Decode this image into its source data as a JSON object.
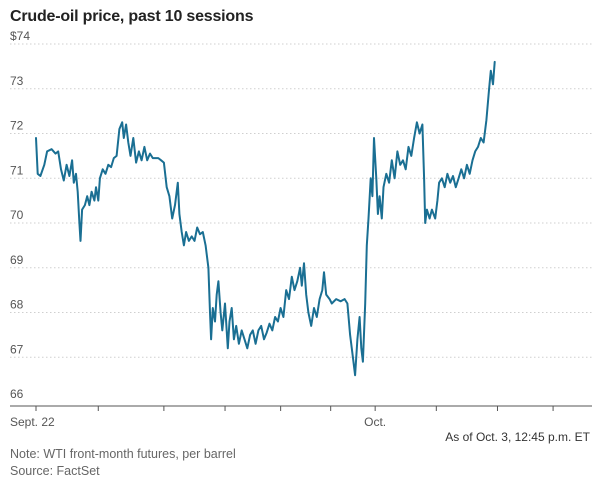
{
  "chart_data": {
    "type": "line",
    "title": "Crude-oil price, past 10 sessions",
    "xlabel": "",
    "ylabel": "",
    "ylim": [
      66,
      74
    ],
    "y_ticks": [
      {
        "value": 74,
        "label": "$74"
      },
      {
        "value": 73,
        "label": "73"
      },
      {
        "value": 72,
        "label": "72"
      },
      {
        "value": 71,
        "label": "71"
      },
      {
        "value": 70,
        "label": "70"
      },
      {
        "value": 69,
        "label": "69"
      },
      {
        "value": 68,
        "label": "68"
      },
      {
        "value": 67,
        "label": "67"
      },
      {
        "value": 66,
        "label": "66"
      }
    ],
    "x_range": [
      0,
      10
    ],
    "x_ticks": [
      0,
      1.12,
      2.3,
      3.4,
      4.4,
      5.3,
      6.1,
      7.2,
      8.3,
      9.3
    ],
    "x_tick_labels": [
      {
        "x": 0,
        "label": "Sept. 22"
      },
      {
        "x": 6.1,
        "label": "Oct."
      }
    ],
    "series": [
      {
        "name": "WTI front-month futures",
        "color": "#1a6f93",
        "points": [
          [
            0.0,
            71.9
          ],
          [
            0.03,
            71.1
          ],
          [
            0.08,
            71.05
          ],
          [
            0.15,
            71.3
          ],
          [
            0.2,
            71.6
          ],
          [
            0.28,
            71.65
          ],
          [
            0.35,
            71.55
          ],
          [
            0.4,
            71.6
          ],
          [
            0.45,
            71.2
          ],
          [
            0.5,
            70.95
          ],
          [
            0.55,
            71.3
          ],
          [
            0.6,
            71.05
          ],
          [
            0.65,
            71.4
          ],
          [
            0.68,
            70.9
          ],
          [
            0.72,
            71.1
          ],
          [
            0.75,
            70.7
          ],
          [
            0.78,
            70.0
          ],
          [
            0.8,
            69.6
          ],
          [
            0.83,
            70.3
          ],
          [
            0.88,
            70.4
          ],
          [
            0.92,
            70.6
          ],
          [
            0.96,
            70.4
          ],
          [
            1.0,
            70.7
          ],
          [
            1.05,
            70.5
          ],
          [
            1.08,
            70.8
          ],
          [
            1.12,
            70.5
          ],
          [
            1.15,
            71.0
          ],
          [
            1.2,
            71.2
          ],
          [
            1.25,
            71.1
          ],
          [
            1.3,
            71.3
          ],
          [
            1.35,
            71.25
          ],
          [
            1.4,
            71.45
          ],
          [
            1.45,
            71.5
          ],
          [
            1.5,
            72.1
          ],
          [
            1.55,
            72.25
          ],
          [
            1.58,
            71.9
          ],
          [
            1.62,
            72.2
          ],
          [
            1.66,
            71.8
          ],
          [
            1.7,
            71.5
          ],
          [
            1.75,
            71.9
          ],
          [
            1.8,
            71.35
          ],
          [
            1.85,
            71.6
          ],
          [
            1.9,
            71.4
          ],
          [
            1.95,
            71.7
          ],
          [
            2.0,
            71.4
          ],
          [
            2.05,
            71.55
          ],
          [
            2.1,
            71.45
          ],
          [
            2.2,
            71.45
          ],
          [
            2.25,
            71.4
          ],
          [
            2.3,
            71.35
          ],
          [
            2.35,
            70.8
          ],
          [
            2.4,
            70.6
          ],
          [
            2.45,
            70.1
          ],
          [
            2.5,
            70.4
          ],
          [
            2.55,
            70.9
          ],
          [
            2.58,
            70.2
          ],
          [
            2.62,
            69.8
          ],
          [
            2.66,
            69.5
          ],
          [
            2.7,
            69.8
          ],
          [
            2.75,
            69.6
          ],
          [
            2.8,
            69.7
          ],
          [
            2.85,
            69.6
          ],
          [
            2.9,
            69.9
          ],
          [
            2.95,
            69.75
          ],
          [
            3.0,
            69.8
          ],
          [
            3.05,
            69.5
          ],
          [
            3.1,
            69.0
          ],
          [
            3.13,
            68.0
          ],
          [
            3.15,
            67.4
          ],
          [
            3.18,
            68.1
          ],
          [
            3.22,
            67.8
          ],
          [
            3.25,
            68.4
          ],
          [
            3.28,
            68.7
          ],
          [
            3.32,
            68.0
          ],
          [
            3.35,
            67.6
          ],
          [
            3.4,
            68.2
          ],
          [
            3.45,
            67.2
          ],
          [
            3.48,
            67.8
          ],
          [
            3.52,
            68.1
          ],
          [
            3.56,
            67.4
          ],
          [
            3.6,
            67.7
          ],
          [
            3.65,
            67.3
          ],
          [
            3.7,
            67.6
          ],
          [
            3.75,
            67.4
          ],
          [
            3.8,
            67.2
          ],
          [
            3.85,
            67.5
          ],
          [
            3.9,
            67.6
          ],
          [
            3.95,
            67.3
          ],
          [
            4.0,
            67.6
          ],
          [
            4.05,
            67.7
          ],
          [
            4.1,
            67.4
          ],
          [
            4.15,
            67.55
          ],
          [
            4.2,
            67.75
          ],
          [
            4.25,
            67.6
          ],
          [
            4.3,
            67.9
          ],
          [
            4.35,
            67.8
          ],
          [
            4.4,
            68.1
          ],
          [
            4.45,
            67.9
          ],
          [
            4.5,
            68.5
          ],
          [
            4.55,
            68.3
          ],
          [
            4.6,
            68.8
          ],
          [
            4.65,
            68.5
          ],
          [
            4.7,
            68.7
          ],
          [
            4.75,
            69.0
          ],
          [
            4.78,
            68.6
          ],
          [
            4.82,
            69.1
          ],
          [
            4.86,
            68.4
          ],
          [
            4.9,
            68.0
          ],
          [
            4.95,
            67.7
          ],
          [
            5.0,
            68.1
          ],
          [
            5.05,
            67.9
          ],
          [
            5.1,
            68.3
          ],
          [
            5.15,
            68.5
          ],
          [
            5.18,
            68.9
          ],
          [
            5.22,
            68.4
          ],
          [
            5.28,
            68.3
          ],
          [
            5.32,
            68.2
          ],
          [
            5.4,
            68.3
          ],
          [
            5.48,
            68.25
          ],
          [
            5.55,
            68.3
          ],
          [
            5.6,
            68.2
          ],
          [
            5.65,
            67.5
          ],
          [
            5.7,
            67.0
          ],
          [
            5.74,
            66.6
          ],
          [
            5.78,
            67.4
          ],
          [
            5.82,
            67.9
          ],
          [
            5.85,
            67.2
          ],
          [
            5.88,
            66.9
          ],
          [
            5.92,
            68.2
          ],
          [
            5.95,
            69.5
          ],
          [
            5.98,
            70.1
          ],
          [
            6.02,
            71.0
          ],
          [
            6.05,
            70.6
          ],
          [
            6.08,
            71.9
          ],
          [
            6.12,
            71.0
          ],
          [
            6.15,
            70.2
          ],
          [
            6.18,
            70.6
          ],
          [
            6.22,
            70.1
          ],
          [
            6.25,
            70.8
          ],
          [
            6.3,
            71.1
          ],
          [
            6.35,
            70.9
          ],
          [
            6.4,
            71.4
          ],
          [
            6.45,
            71.0
          ],
          [
            6.5,
            71.6
          ],
          [
            6.55,
            71.3
          ],
          [
            6.6,
            71.4
          ],
          [
            6.65,
            71.2
          ],
          [
            6.7,
            71.7
          ],
          [
            6.75,
            71.5
          ],
          [
            6.8,
            71.9
          ],
          [
            6.85,
            72.25
          ],
          [
            6.9,
            72.0
          ],
          [
            6.95,
            72.2
          ],
          [
            6.98,
            71.0
          ],
          [
            7.0,
            70.0
          ],
          [
            7.03,
            70.3
          ],
          [
            7.08,
            70.1
          ],
          [
            7.12,
            70.3
          ],
          [
            7.18,
            70.1
          ],
          [
            7.22,
            70.5
          ],
          [
            7.25,
            70.9
          ],
          [
            7.3,
            71.0
          ],
          [
            7.35,
            70.8
          ],
          [
            7.4,
            71.1
          ],
          [
            7.45,
            70.9
          ],
          [
            7.5,
            71.05
          ],
          [
            7.55,
            70.8
          ],
          [
            7.6,
            71.0
          ],
          [
            7.65,
            71.2
          ],
          [
            7.7,
            71.0
          ],
          [
            7.75,
            71.3
          ],
          [
            7.8,
            71.1
          ],
          [
            7.85,
            71.4
          ],
          [
            7.9,
            71.6
          ],
          [
            7.95,
            71.7
          ],
          [
            8.0,
            71.9
          ],
          [
            8.05,
            71.8
          ],
          [
            8.1,
            72.3
          ],
          [
            8.15,
            73.0
          ],
          [
            8.18,
            73.4
          ],
          [
            8.22,
            73.1
          ],
          [
            8.25,
            73.6
          ]
        ]
      }
    ]
  },
  "as_of": "As of Oct. 3, 12:45 p.m. ET",
  "note": "Note: WTI front-month futures, per barrel",
  "source": "Source: FactSet"
}
